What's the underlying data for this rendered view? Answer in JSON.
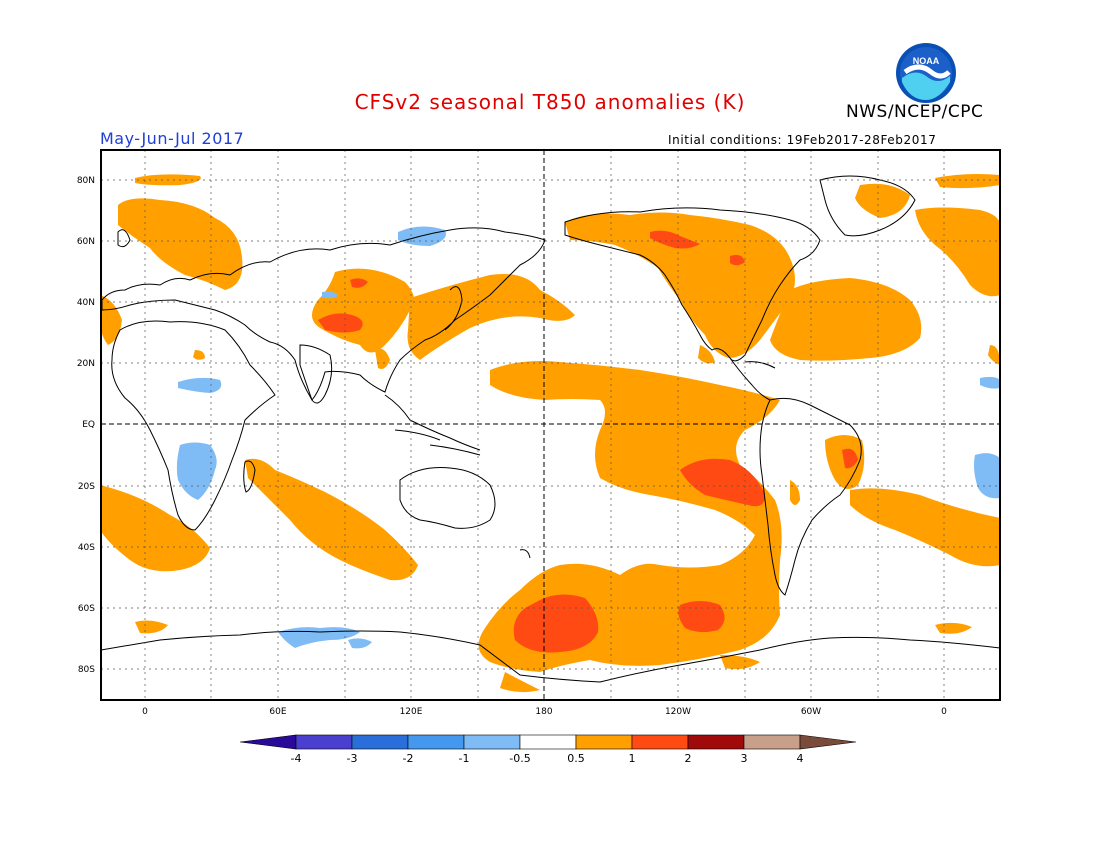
{
  "title": "CFSv2 seasonal T850 anomalies (K)",
  "agency": "NWS/NCEP/CPC",
  "season": "May-Jun-Jul 2017",
  "initial_conditions": "Initial conditions: 19Feb2017-28Feb2017",
  "logo_text": "NOAA",
  "lat_labels": [
    "80N",
    "60N",
    "40N",
    "20N",
    "EQ",
    "20S",
    "40S",
    "60S",
    "80S"
  ],
  "lon_labels": [
    "0",
    "60E",
    "120E",
    "180",
    "120W",
    "60W",
    "0"
  ],
  "colorbar": {
    "labels": [
      "-4",
      "-3",
      "-2",
      "-1",
      "-0.5",
      "0.5",
      "1",
      "2",
      "3",
      "4"
    ],
    "colors": [
      "#2a0a9a",
      "#4b3fd0",
      "#2a6fd9",
      "#4499ee",
      "#7fbcf5",
      "#ffffff",
      "#ffa000",
      "#ff4a14",
      "#a00a0a",
      "#c8a08a",
      "#7a4a3a"
    ]
  },
  "legend_levels": {
    "warm_0.5_1": "#ffa000",
    "warm_1_2": "#ff4a14",
    "cool_-1_-0.5": "#7fbcf5"
  }
}
